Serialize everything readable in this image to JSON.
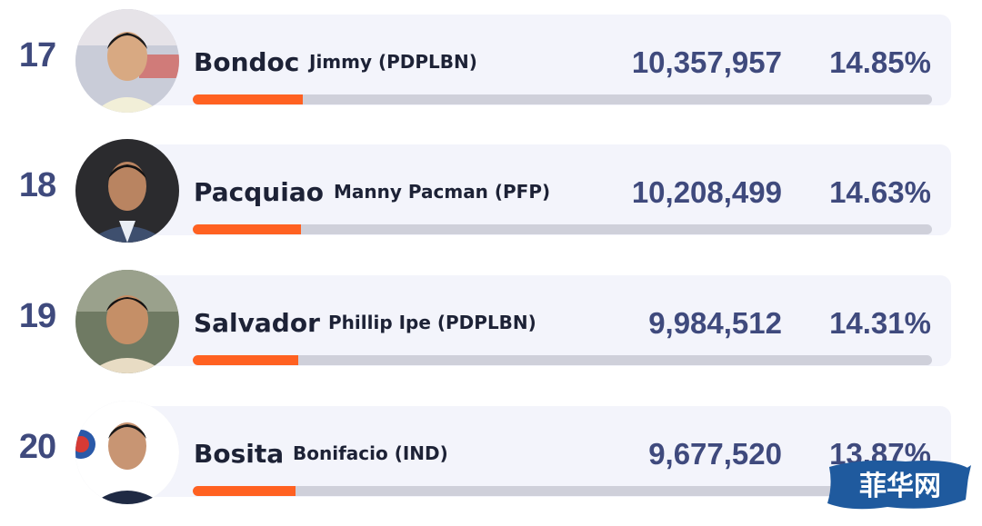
{
  "chart_data": {
    "type": "bar",
    "max_scale": 100,
    "rows": [
      {
        "rank": "17",
        "surname": "Bondoc",
        "given": "Jimmy (PDPLBN)",
        "votes": "10,357,957",
        "share": "14.85%",
        "share_value": 14.85
      },
      {
        "rank": "18",
        "surname": "Pacquiao",
        "given": "Manny Pacman (PFP)",
        "votes": "10,208,499",
        "share": "14.63%",
        "share_value": 14.63
      },
      {
        "rank": "19",
        "surname": "Salvador",
        "given": "Phillip Ipe (PDPLBN)",
        "votes": "9,984,512",
        "share": "14.31%",
        "share_value": 14.31
      },
      {
        "rank": "20",
        "surname": "Bosita",
        "given": "Bonifacio (IND)",
        "votes": "9,677,520",
        "share": "13.87%",
        "share_value": 13.87
      }
    ]
  },
  "colors": {
    "bar_fill": "#ff6121",
    "bar_track": "#cfd0da",
    "card": "#f3f4fb",
    "number_text": "#3f4a7d",
    "name_text": "#1d2236"
  },
  "watermark": {
    "text": "菲华网"
  }
}
